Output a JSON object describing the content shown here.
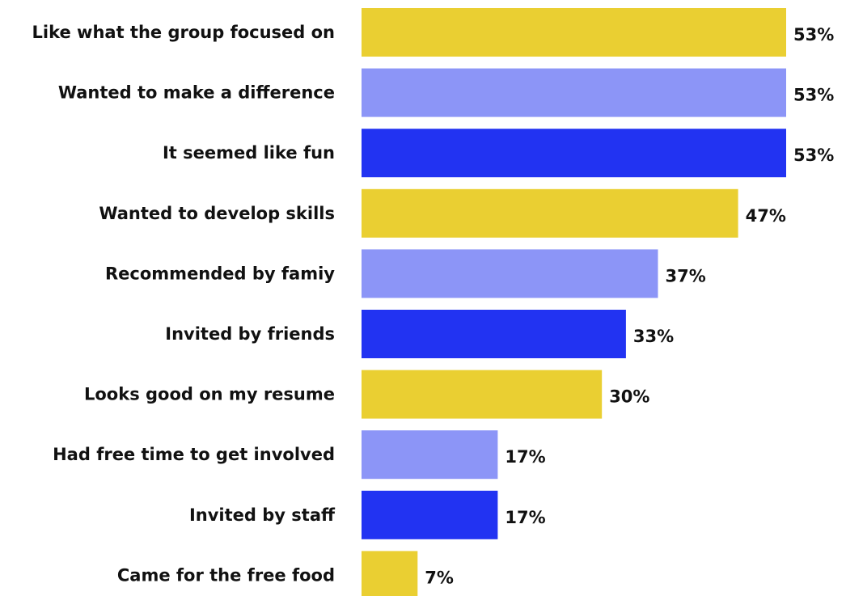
{
  "chart_data": {
    "type": "bar",
    "orientation": "horizontal",
    "categories": [
      "Like what the group focused on",
      "Wanted to make a difference",
      "It seemed like fun",
      "Wanted to develop skills",
      "Recommended by famiy",
      "Invited by friends",
      "Looks good on my resume",
      "Had free time to get involved",
      "Invited by staff",
      "Came for the free food"
    ],
    "values": [
      53,
      53,
      53,
      47,
      37,
      33,
      30,
      17,
      17,
      7
    ],
    "value_labels": [
      "53%",
      "53%",
      "53%",
      "47%",
      "37%",
      "33%",
      "30%",
      "17%",
      "17%",
      "7%"
    ],
    "bar_colors": [
      "#EACF32",
      "#8C95F7",
      "#2233F2",
      "#EACF32",
      "#8C95F7",
      "#2233F2",
      "#EACF32",
      "#8C95F7",
      "#2233F2",
      "#EACF32"
    ],
    "xlim": [
      0,
      53
    ],
    "grid": false,
    "legend": "none"
  }
}
